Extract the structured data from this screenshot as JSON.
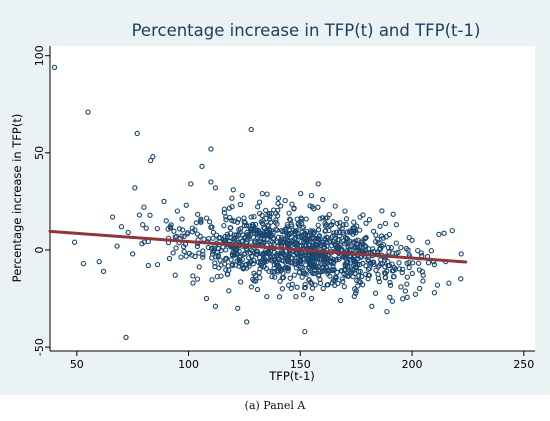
{
  "caption": "(a) Panel A",
  "chart_data": {
    "type": "scatter",
    "title": "Percentage increase in TFP(t) and TFP(t-1)",
    "xlabel": "TFP(t-1)",
    "ylabel": "Percentage increase in TFP(t)",
    "xlim": [
      38,
      255
    ],
    "ylim": [
      -52,
      105
    ],
    "xticks": [
      50,
      100,
      150,
      200,
      250
    ],
    "yticks": [
      -50,
      0,
      50,
      100
    ],
    "grid": false,
    "legend": "none",
    "colors": {
      "points": "#1a476f",
      "fit_line": "#90353b",
      "panel": "#eaf2f3",
      "plot_area": "#ffffff"
    },
    "points": [
      [
        40,
        94
      ],
      [
        55,
        71
      ],
      [
        77,
        60
      ],
      [
        110,
        52
      ],
      [
        128,
        62
      ],
      [
        72,
        -45
      ],
      [
        152,
        -42
      ],
      [
        158,
        34
      ],
      [
        84,
        48
      ],
      [
        83,
        46
      ],
      [
        101,
        34
      ],
      [
        106,
        43
      ],
      [
        110,
        35
      ],
      [
        112,
        32
      ],
      [
        124,
        28
      ],
      [
        133,
        29
      ],
      [
        140,
        24
      ],
      [
        155,
        28
      ],
      [
        160,
        26
      ],
      [
        76,
        32
      ],
      [
        80,
        22
      ],
      [
        89,
        25
      ],
      [
        95,
        20
      ],
      [
        99,
        23
      ],
      [
        120,
        31
      ],
      [
        145,
        19
      ],
      [
        49,
        4
      ],
      [
        53,
        -7
      ],
      [
        60,
        -6
      ],
      [
        62,
        -11
      ],
      [
        66,
        17
      ],
      [
        68,
        2
      ],
      [
        70,
        12
      ],
      [
        73,
        9
      ],
      [
        75,
        -2
      ],
      [
        78,
        18
      ],
      [
        82,
        -8
      ],
      [
        86,
        11
      ],
      [
        90,
        15
      ],
      [
        94,
        -13
      ],
      [
        98,
        7
      ],
      [
        104,
        -15
      ],
      [
        108,
        -25
      ],
      [
        112,
        -29
      ],
      [
        118,
        -21
      ],
      [
        122,
        -30
      ],
      [
        126,
        -37
      ],
      [
        130,
        -16
      ],
      [
        135,
        -24
      ],
      [
        142,
        -20
      ],
      [
        148,
        -24
      ],
      [
        155,
        -25
      ],
      [
        162,
        -18
      ],
      [
        168,
        -26
      ],
      [
        175,
        -21
      ],
      [
        182,
        -29
      ],
      [
        188,
        -14
      ],
      [
        195,
        -19
      ],
      [
        205,
        -13
      ],
      [
        210,
        -22
      ],
      [
        215,
        -6
      ],
      [
        218,
        10
      ],
      [
        222,
        -2
      ],
      [
        212,
        8
      ],
      [
        207,
        4
      ],
      [
        200,
        5
      ],
      [
        193,
        13
      ],
      [
        186,
        -7
      ],
      [
        178,
        18
      ],
      [
        170,
        20
      ],
      [
        164,
        13
      ],
      [
        152,
        -12
      ],
      [
        136,
        -11
      ],
      [
        128,
        17
      ],
      [
        116,
        21
      ],
      [
        102,
        -17
      ]
    ],
    "fit_line": {
      "x": [
        38,
        224
      ],
      "y": [
        9.6,
        -6.2
      ]
    }
  }
}
